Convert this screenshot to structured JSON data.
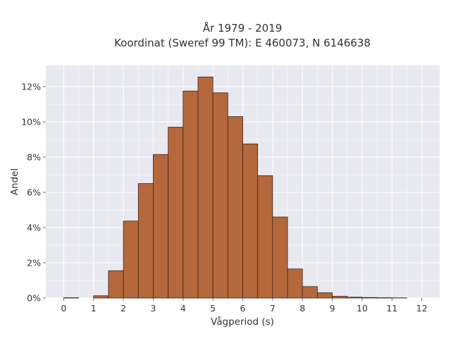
{
  "chart_data": {
    "type": "bar",
    "title_line1": "År 1979 - 2019",
    "title_line2": "Koordinat (Sweref 99 TM): E 460073, N 6146638",
    "xlabel": "Vågperiod (s)",
    "ylabel": "Andel",
    "bin_width": 0.5,
    "bin_starts": [
      0,
      0.5,
      1,
      1.5,
      2,
      2.5,
      3,
      3.5,
      4,
      4.5,
      5,
      5.5,
      6,
      6.5,
      7,
      7.5,
      8,
      8.5,
      9,
      9.5,
      10,
      10.5,
      11,
      11.5
    ],
    "values": [
      0.02,
      0.0,
      0.13,
      1.55,
      4.37,
      6.5,
      8.15,
      9.7,
      11.75,
      12.55,
      11.65,
      10.3,
      8.75,
      6.95,
      4.6,
      1.65,
      0.65,
      0.3,
      0.1,
      0.05,
      0.03,
      0.02,
      0.01,
      0.0
    ],
    "value_unit": "%",
    "xlim": [
      -0.6,
      12.6
    ],
    "ylim": [
      0,
      13.2
    ],
    "x_ticks": [
      "0",
      "1",
      "2",
      "3",
      "4",
      "5",
      "6",
      "7",
      "8",
      "9",
      "10",
      "11",
      "12"
    ],
    "y_ticks": [
      "0%",
      "2%",
      "4%",
      "6%",
      "8%",
      "10%",
      "12%"
    ],
    "grid": true,
    "colors": {
      "bar_fill": "#b5683b",
      "bar_stroke": "#3d2418",
      "plot_background": "#e8e8f0",
      "grid": "#ffffff"
    }
  }
}
